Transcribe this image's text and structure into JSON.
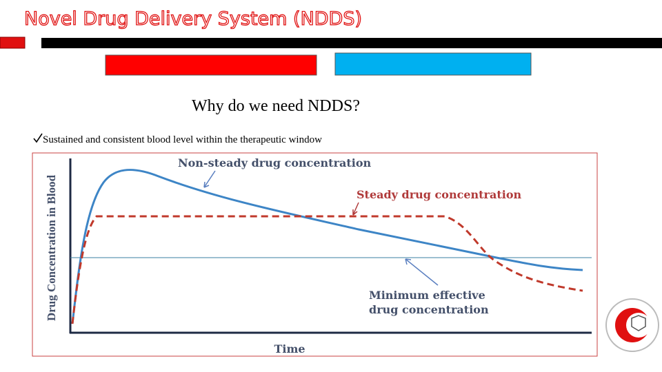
{
  "title": "Novel Drug Delivery System (NDDS)",
  "heading": "Why do we need NDDS?",
  "bullet": "Sustained and consistent blood level within the therapeutic window",
  "figure": {
    "y_label": "Drug Concentration in Blood",
    "x_label": "Time",
    "labels": [
      "Non-steady drug concentration",
      "Steady drug concentration",
      "Minimum effective",
      "drug concentration"
    ]
  }
}
